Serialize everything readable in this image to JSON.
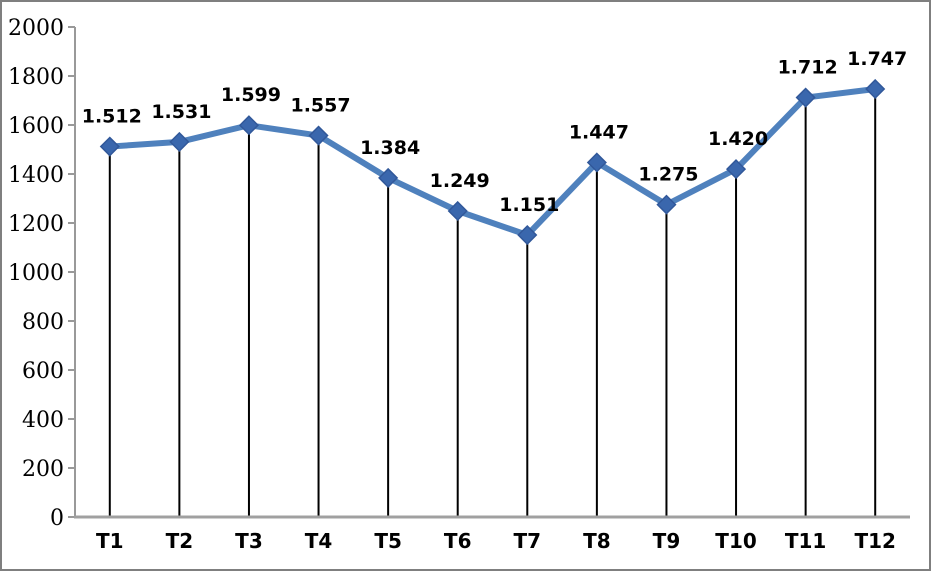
{
  "chart_data": {
    "type": "line",
    "title": "",
    "xlabel": "",
    "ylabel": "",
    "categories": [
      "T1",
      "T2",
      "T3",
      "T4",
      "T5",
      "T6",
      "T7",
      "T8",
      "T9",
      "T10",
      "T11",
      "T12"
    ],
    "values": [
      1512,
      1531,
      1599,
      1557,
      1384,
      1249,
      1151,
      1447,
      1275,
      1420,
      1712,
      1747
    ],
    "point_labels": [
      "1.512",
      "1.531",
      "1.599",
      "1.557",
      "1.384",
      "1.249",
      "1.151",
      "1.447",
      "1.275",
      "1.420",
      "1.712",
      "1.747"
    ],
    "ylim": [
      0,
      2000
    ],
    "ytick_values": [
      0,
      200,
      400,
      600,
      800,
      1000,
      1200,
      1400,
      1600,
      1800,
      2000
    ],
    "ytick_labels": [
      "0",
      "200",
      "400",
      "600",
      "800",
      "1000",
      "1200",
      "1400",
      "1600",
      "1800",
      "2000"
    ],
    "grid": false,
    "legend": "none",
    "marker": "diamond",
    "drop_lines": true,
    "colors": {
      "line": "#4F81BD",
      "marker_fill": "#3A67AD",
      "marker_stroke": "#31589A",
      "axis": "#999999",
      "baseline": "#A0A0A0",
      "drop_line": "#000000",
      "label_text": "#000000",
      "frame_border": "#7F7F7F",
      "background": "#FFFFFF"
    }
  }
}
